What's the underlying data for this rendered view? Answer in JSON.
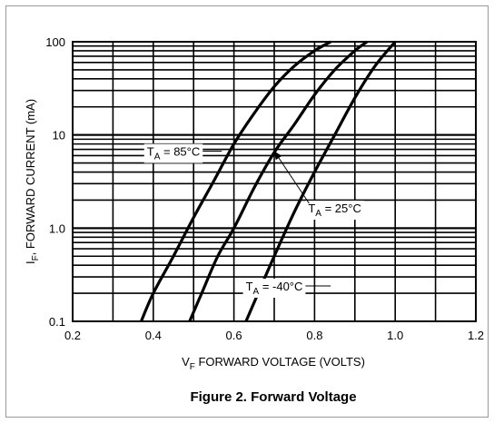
{
  "chart_data": {
    "type": "line",
    "title": "",
    "caption": "Figure 2. Forward Voltage",
    "xlabel": {
      "prefix": "V",
      "sub": "F",
      "rest": " FORWARD VOLTAGE (VOLTS)"
    },
    "ylabel": {
      "prefix": "I",
      "sub": "F",
      "rest": ", FORWARD CURRENT (mA)"
    },
    "xlim": [
      0.2,
      1.2
    ],
    "ylim": [
      0.1,
      100
    ],
    "yscale": "log",
    "grid": true,
    "x_ticks": [
      {
        "v": 0.2,
        "label": "0.2"
      },
      {
        "v": 0.4,
        "label": "0.4"
      },
      {
        "v": 0.6,
        "label": "0.6"
      },
      {
        "v": 0.8,
        "label": "0.8"
      },
      {
        "v": 1.0,
        "label": "1.0"
      },
      {
        "v": 1.2,
        "label": "1.2"
      }
    ],
    "y_ticks": [
      {
        "v": 0.1,
        "label": "0.1"
      },
      {
        "v": 1,
        "label": "1.0"
      },
      {
        "v": 10,
        "label": "10"
      },
      {
        "v": 100,
        "label": "100"
      }
    ],
    "series": [
      {
        "name": "85°C",
        "label_prefix": "T",
        "label_sub": "A",
        "label_rest": " = 85°C",
        "x": [
          0.37,
          0.4,
          0.45,
          0.5,
          0.55,
          0.6,
          0.65,
          0.7,
          0.75,
          0.8,
          0.84
        ],
        "y": [
          0.1,
          0.2,
          0.5,
          1.3,
          3.2,
          8,
          17,
          33,
          55,
          80,
          100
        ]
      },
      {
        "name": "25°C",
        "label_prefix": "T",
        "label_sub": "A",
        "label_rest": " = 25°C",
        "x": [
          0.49,
          0.52,
          0.56,
          0.6,
          0.65,
          0.7,
          0.75,
          0.8,
          0.85,
          0.9,
          0.93
        ],
        "y": [
          0.1,
          0.2,
          0.5,
          1.0,
          2.7,
          6.5,
          13,
          27,
          50,
          80,
          100
        ]
      },
      {
        "name": "-40°C",
        "label_prefix": "T",
        "label_sub": "A",
        "label_rest": " = -40°C",
        "x": [
          0.63,
          0.66,
          0.7,
          0.75,
          0.8,
          0.85,
          0.9,
          0.95,
          1.0
        ],
        "y": [
          0.1,
          0.2,
          0.5,
          1.5,
          4,
          10,
          25,
          55,
          100
        ]
      }
    ],
    "annotations": [
      {
        "series": 0,
        "text_x": 0.45,
        "text_y": 6.7,
        "point_x": 0.57,
        "point_y": 6.7,
        "arrow": false
      },
      {
        "series": 1,
        "text_x": 0.85,
        "text_y": 1.65,
        "point_x": 0.7,
        "point_y": 6.7,
        "arrow": true
      },
      {
        "series": 2,
        "text_x": 0.7,
        "text_y": 0.24,
        "point_x": 0.84,
        "point_y": 0.24,
        "arrow": false
      }
    ]
  }
}
